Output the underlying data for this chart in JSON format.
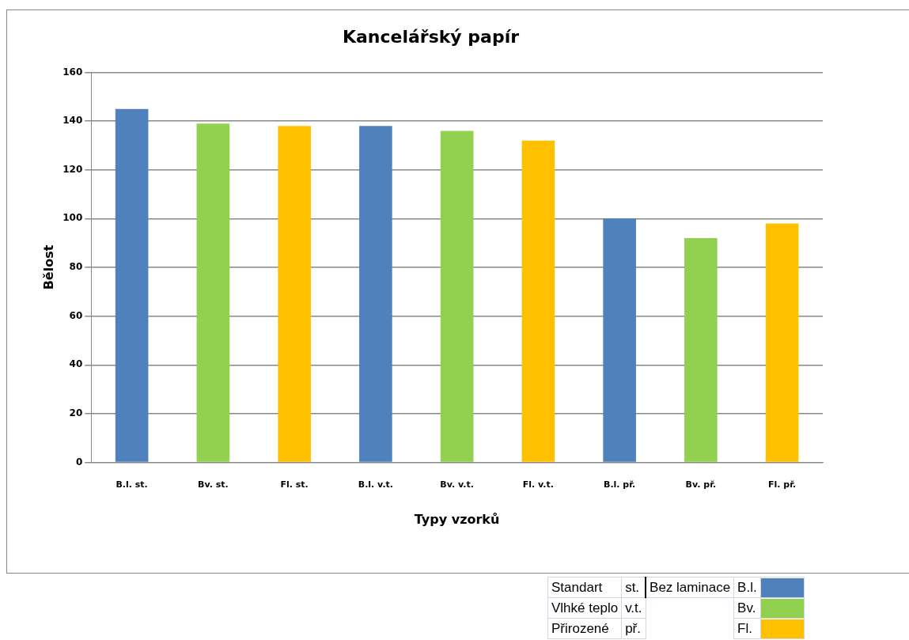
{
  "chart_data": {
    "type": "bar",
    "title": "Kancelářský papír",
    "xlabel": "Typy vzorků",
    "ylabel": "Bělost",
    "categories": [
      "B.l. st.",
      "Bv. st.",
      "Fl. st.",
      "B.l. v.t.",
      "Bv. v.t.",
      "Fl. v.t.",
      "B.l. př.",
      "Bv. př.",
      "Fl. př."
    ],
    "values": [
      145,
      139,
      138,
      138,
      136,
      132,
      100,
      92,
      98
    ],
    "colors": [
      "#4f81bd",
      "#92d050",
      "#ffc000",
      "#4f81bd",
      "#92d050",
      "#ffc000",
      "#4f81bd",
      "#92d050",
      "#ffc000"
    ],
    "ylim": [
      0,
      160
    ],
    "yticks": [
      0,
      20,
      40,
      60,
      80,
      100,
      120,
      140,
      160
    ],
    "grid": "y",
    "legend": false,
    "annotations": [
      "Standart",
      "st.",
      "Vlhké teplo",
      "v.t.",
      "Přirozené",
      "př.",
      "Bez laminace",
      "B.l.",
      "Bv.",
      "Fl."
    ]
  }
}
